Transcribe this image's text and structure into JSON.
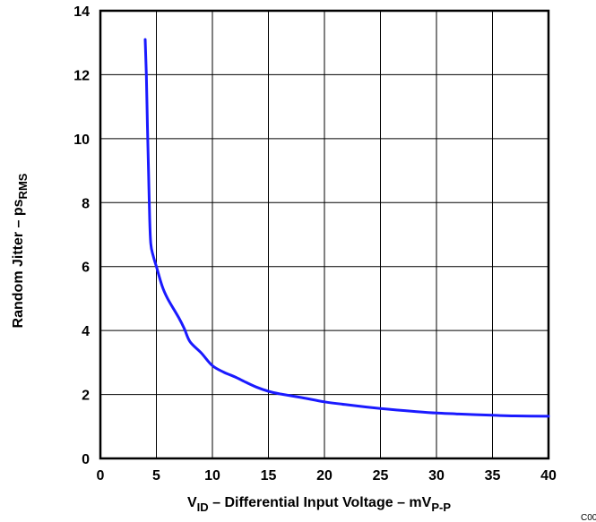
{
  "chart_data": {
    "type": "line",
    "xlabel": {
      "prefix": "V",
      "prefix_sub": "ID",
      "middle": " – Differential Input Voltage – mV",
      "unit_sub": "P-P"
    },
    "ylabel": {
      "main": "Random Jitter – ps",
      "sub": "RMS"
    },
    "xlim": [
      0,
      40
    ],
    "ylim": [
      0,
      14
    ],
    "xticks": [
      "0",
      "5",
      "10",
      "15",
      "20",
      "25",
      "30",
      "35",
      "40"
    ],
    "yticks": [
      "0",
      "2",
      "4",
      "6",
      "8",
      "10",
      "12",
      "14"
    ],
    "grid": true,
    "line_color": "#1a1aff",
    "series": [
      {
        "x": [
          4.0,
          4.1,
          4.2,
          4.3,
          4.4,
          4.5,
          4.7,
          5.0,
          5.5,
          6.0,
          7.0,
          7.5,
          8.0,
          9.0,
          10.0,
          11.0,
          12.0,
          13.0,
          14.0,
          15.0,
          16.0,
          18.0,
          20.0,
          22.0,
          25.0,
          28.0,
          30.0,
          32.0,
          35.0,
          37.0,
          40.0
        ],
        "y": [
          13.1,
          12.0,
          10.4,
          8.9,
          7.5,
          6.7,
          6.35,
          6.0,
          5.4,
          5.0,
          4.4,
          4.05,
          3.65,
          3.3,
          2.9,
          2.7,
          2.55,
          2.38,
          2.22,
          2.1,
          2.02,
          1.9,
          1.77,
          1.68,
          1.56,
          1.47,
          1.42,
          1.39,
          1.35,
          1.33,
          1.32
        ]
      }
    ],
    "annotation": "C002"
  }
}
